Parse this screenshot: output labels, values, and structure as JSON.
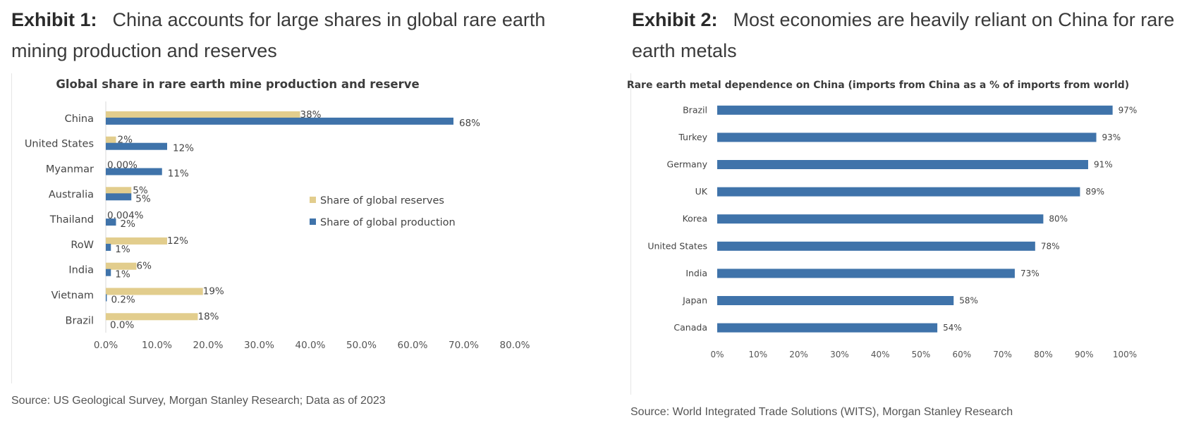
{
  "exhibit1": {
    "label": "Exhibit 1:",
    "title": "China accounts for large shares in global rare earth mining production and reserves",
    "source": "Source: US Geological Survey, Morgan Stanley Research; Data as of 2023"
  },
  "exhibit2": {
    "label": "Exhibit 2:",
    "title": "Most economies are heavily reliant on China for rare earth metals",
    "source": "Source: World Integrated Trade Solutions (WITS), Morgan Stanley Research"
  },
  "colors": {
    "reserves": "#e2cd8d",
    "production": "#3f73aa"
  },
  "chart_data": [
    {
      "type": "bar",
      "orientation": "horizontal",
      "title": "Global share in rare earth mine production and reserve",
      "categories": [
        "China",
        "United States",
        "Myanmar",
        "Australia",
        "Thailand",
        "RoW",
        "India",
        "Vietnam",
        "Brazil"
      ],
      "series": [
        {
          "name": "Share of global reserves",
          "values": [
            38,
            2,
            0,
            5,
            0.004,
            12,
            6,
            19,
            18
          ],
          "labels": [
            "38%",
            "2%",
            "0.00%",
            "5%",
            "0.004%",
            "12%",
            "6%",
            "19%",
            "18%"
          ]
        },
        {
          "name": "Share of global production",
          "values": [
            68,
            12,
            11,
            5,
            2,
            1,
            1,
            0.2,
            0
          ],
          "labels": [
            "68%",
            "12%",
            "11%",
            "5%",
            "2%",
            "1%",
            "1%",
            "0.2%",
            "0.0%"
          ]
        }
      ],
      "xlim": [
        0,
        80
      ],
      "xticks": [
        "0.0%",
        "10.0%",
        "20.0%",
        "30.0%",
        "40.0%",
        "50.0%",
        "60.0%",
        "70.0%",
        "80.0%"
      ],
      "legend_position": "center-right",
      "grid": false
    },
    {
      "type": "bar",
      "orientation": "horizontal",
      "title": "Rare earth metal dependence on China (imports from China as a % of imports from world)",
      "categories": [
        "Brazil",
        "Turkey",
        "Germany",
        "UK",
        "Korea",
        "United States",
        "India",
        "Japan",
        "Canada"
      ],
      "series": [
        {
          "values": [
            97,
            93,
            91,
            89,
            80,
            78,
            73,
            58,
            54
          ],
          "labels": [
            "97%",
            "93%",
            "91%",
            "89%",
            "80%",
            "78%",
            "73%",
            "58%",
            "54%"
          ]
        }
      ],
      "xlim": [
        0,
        100
      ],
      "xticks": [
        "0%",
        "10%",
        "20%",
        "30%",
        "40%",
        "50%",
        "60%",
        "70%",
        "80%",
        "90%",
        "100%"
      ],
      "grid": false
    }
  ]
}
